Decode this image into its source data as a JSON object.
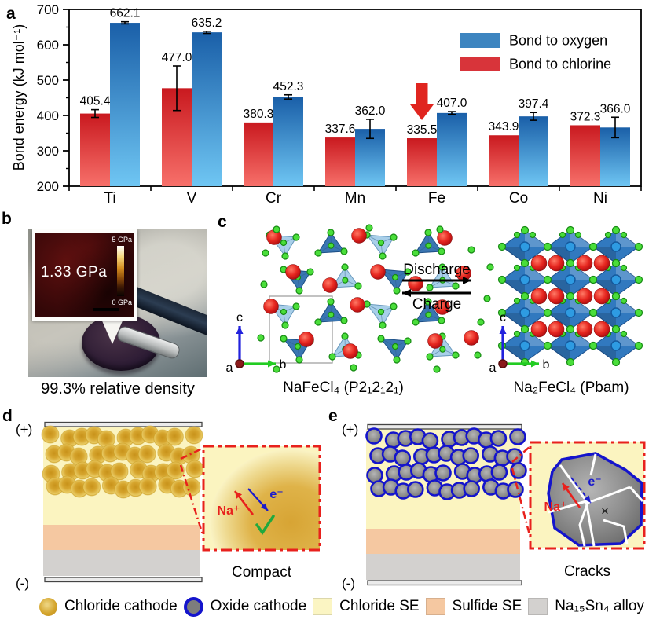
{
  "figure_labels": {
    "a": "a",
    "b": "b",
    "c": "c",
    "d": "d",
    "e": "e"
  },
  "chart_data": {
    "type": "bar",
    "categories": [
      "Ti",
      "V",
      "Cr",
      "Mn",
      "Fe",
      "Co",
      "Ni"
    ],
    "series": [
      {
        "name": "Bond to chlorine",
        "values": [
          405.4,
          477.0,
          380.3,
          337.6,
          335.5,
          343.9,
          372.3
        ],
        "errors": [
          11,
          63,
          0,
          0,
          0,
          0,
          0
        ],
        "color": "#d8343a",
        "gradient_top": "#c9191f",
        "gradient_bottom": "#f7706a"
      },
      {
        "name": "Bond to oxygen",
        "values": [
          662.1,
          635.2,
          452.3,
          362.0,
          407.0,
          397.4,
          366.0
        ],
        "errors": [
          3,
          3,
          6,
          27,
          4,
          11,
          29
        ],
        "color": "#3d85c0",
        "gradient_top": "#1a5fa8",
        "gradient_bottom": "#6fc6f3"
      }
    ],
    "ylabel": "Bond energy (kJ mol⁻¹)",
    "ylim": [
      200,
      700
    ],
    "yticks": [
      200,
      300,
      400,
      500,
      600,
      700
    ],
    "legend_order": [
      "Bond to oxygen",
      "Bond to chlorine"
    ],
    "annotation": {
      "type": "arrow-down",
      "target_category": "Fe",
      "target_series": "Bond to chlorine",
      "color": "#e0251f"
    }
  },
  "panel_b": {
    "pressure_label": "1.33 GPa",
    "scale_max": "5 GPa",
    "scale_min": "0 GPa",
    "caption": "99.3% relative density"
  },
  "panel_c": {
    "discharge_label": "Discharge",
    "charge_label": "Charge",
    "left_formula": "NaFeCl₄ (P2₁2₁2₁)",
    "right_formula": "Na₂FeCl₄ (Pbam)",
    "axis_a": "a",
    "axis_b": "b",
    "axis_c": "c"
  },
  "panel_d": {
    "positive": "(+)",
    "negative": "(-)",
    "ion_label": "Na⁺",
    "electron_label": "e⁻",
    "inset_caption": "Compact"
  },
  "panel_e": {
    "positive": "(+)",
    "negative": "(-)",
    "ion_label": "Na⁺",
    "electron_label": "e⁻",
    "blocked_mark": "×",
    "inset_caption": "Cracks"
  },
  "legend": {
    "items": [
      {
        "label": "Chloride cathode",
        "swatch": "sphere",
        "color": "#d3a32a"
      },
      {
        "label": "Oxide cathode",
        "swatch": "ring-sphere",
        "color": "#7d7d7d",
        "ring": "#1414cc"
      },
      {
        "label": "Chloride SE",
        "swatch": "square",
        "color": "#fbf5c3"
      },
      {
        "label": "Sulfide SE",
        "swatch": "square",
        "color": "#f5c8a1"
      },
      {
        "label": "Na₁₅Sn₄ alloy",
        "swatch": "square",
        "color": "#d3d1cf"
      }
    ]
  },
  "colors": {
    "chloride_se": "#fbf4c0",
    "sulfide_se": "#f5c8a1",
    "alloy": "#d3d1cf",
    "electrode": "#ebebeb",
    "inset_border": "#e8211d",
    "na_red": "#e8211d",
    "electron_blue": "#1a1acc",
    "check_green": "#21a93e",
    "tetra_light": "#a3cce8",
    "tetra_dark": "#2f6fae",
    "octa_blue": "#3179bf",
    "cl_green": "#4ade3a",
    "na_sphere": "#e6261f",
    "fe_center": "#2e9be2",
    "particle_gold": "#d3a32a",
    "particle_gray": "#7d7d7d",
    "particle_ring": "#1414cc"
  }
}
